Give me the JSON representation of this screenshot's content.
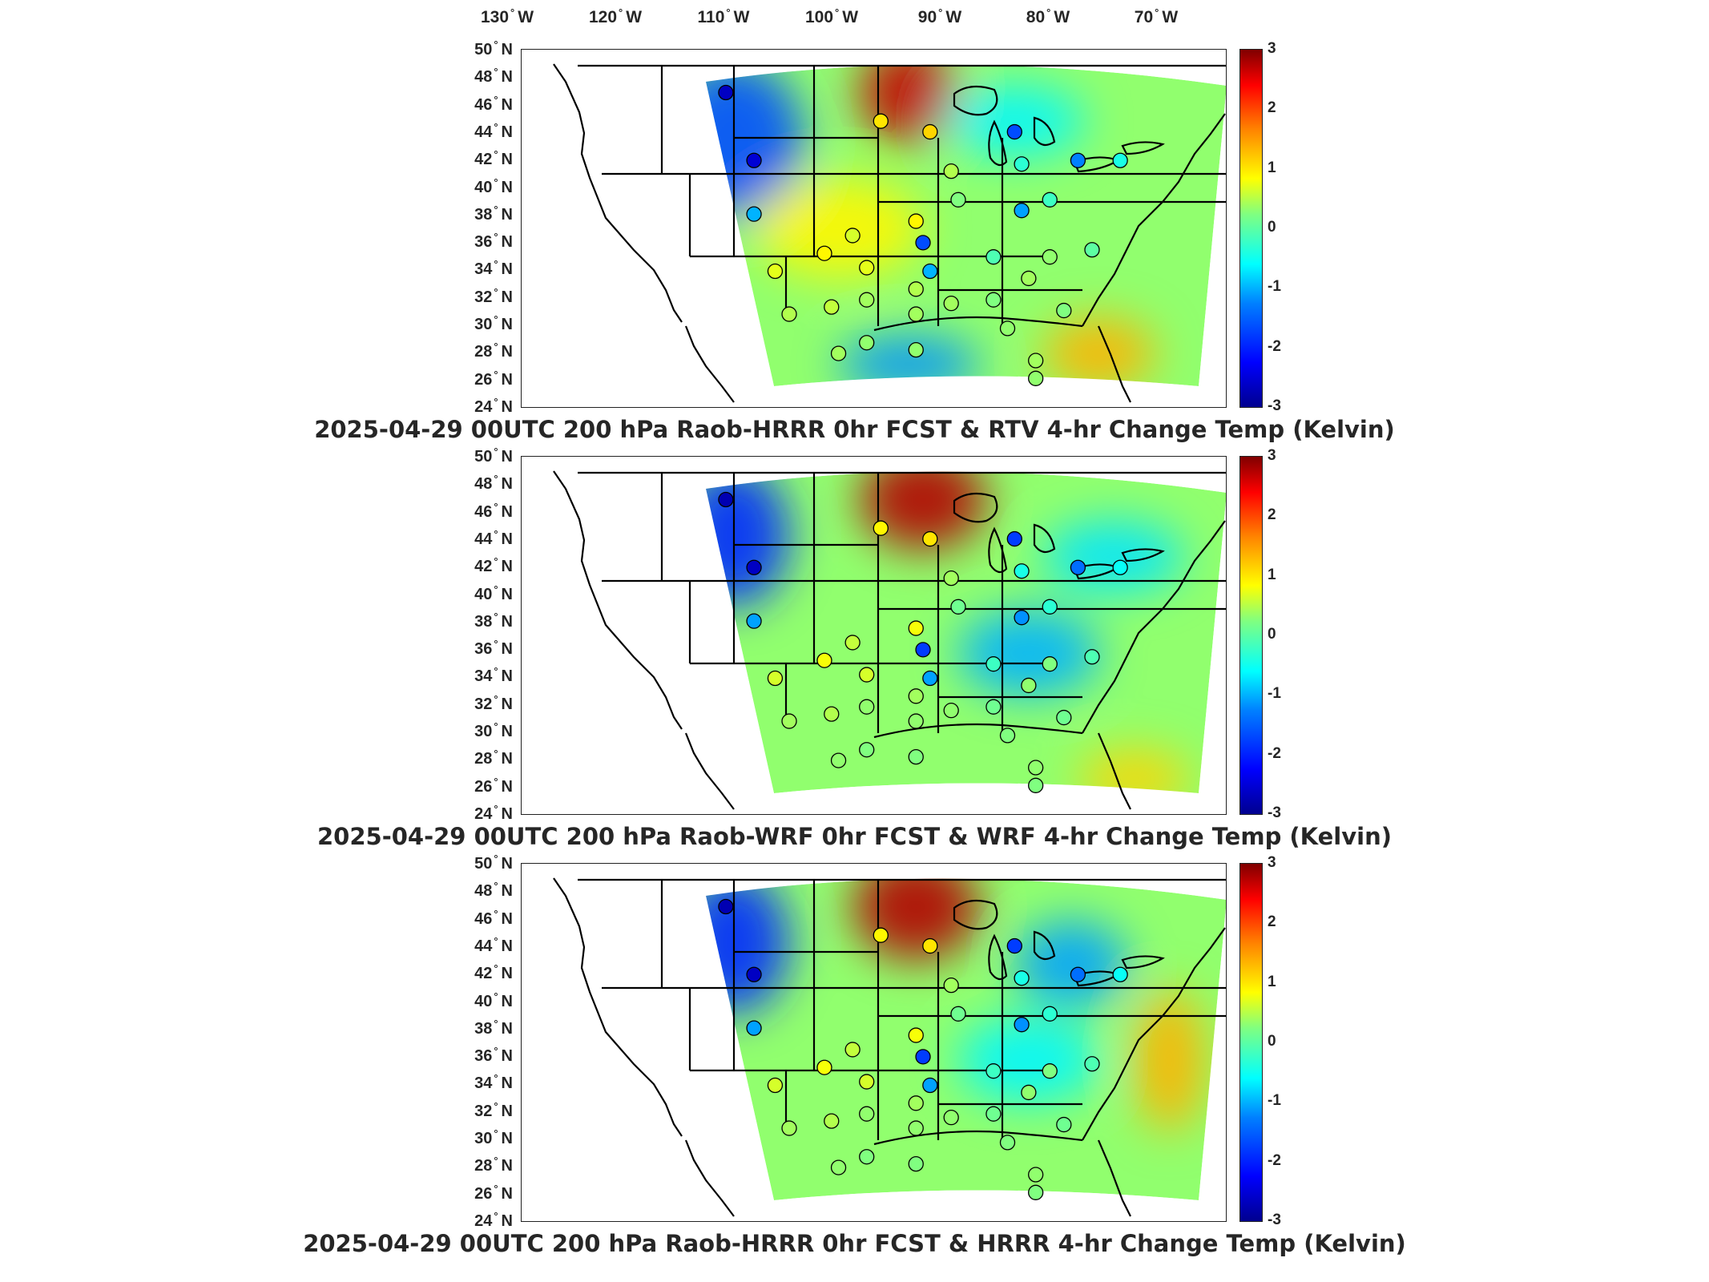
{
  "longitude_labels": [
    {
      "value": "130",
      "dir": "W"
    },
    {
      "value": "120",
      "dir": "W"
    },
    {
      "value": "110",
      "dir": "W"
    },
    {
      "value": "100",
      "dir": "W"
    },
    {
      "value": "90",
      "dir": "W"
    },
    {
      "value": "80",
      "dir": "W"
    },
    {
      "value": "70",
      "dir": "W"
    }
  ],
  "latitude_labels": [
    {
      "value": "50",
      "dir": "N"
    },
    {
      "value": "48",
      "dir": "N"
    },
    {
      "value": "46",
      "dir": "N"
    },
    {
      "value": "44",
      "dir": "N"
    },
    {
      "value": "42",
      "dir": "N"
    },
    {
      "value": "40",
      "dir": "N"
    },
    {
      "value": "38",
      "dir": "N"
    },
    {
      "value": "36",
      "dir": "N"
    },
    {
      "value": "34",
      "dir": "N"
    },
    {
      "value": "32",
      "dir": "N"
    },
    {
      "value": "30",
      "dir": "N"
    },
    {
      "value": "28",
      "dir": "N"
    },
    {
      "value": "26",
      "dir": "N"
    },
    {
      "value": "24",
      "dir": "N"
    }
  ],
  "colorbar": {
    "ticks": [
      "3",
      "2",
      "1",
      "0",
      "-1",
      "-2",
      "-3"
    ],
    "min": -3,
    "max": 3,
    "colormap": "jet"
  },
  "panels": [
    {
      "title": "2025-04-29 00UTC 200 hPa Raob-HRRR 0hr FCST & RTV 4-hr Change Temp (Kelvin)"
    },
    {
      "title": "2025-04-29 00UTC 200 hPa Raob-WRF 0hr FCST & WRF 4-hr Change Temp (Kelvin)"
    },
    {
      "title": "2025-04-29 00UTC 200 hPa Raob-HRRR 0hr FCST & HRRR 4-hr Change Temp (Kelvin)"
    }
  ],
  "colors": {
    "negative_strong": "#0000ff",
    "neutral": "#80ff80",
    "positive_strong": "#ff0000"
  }
}
